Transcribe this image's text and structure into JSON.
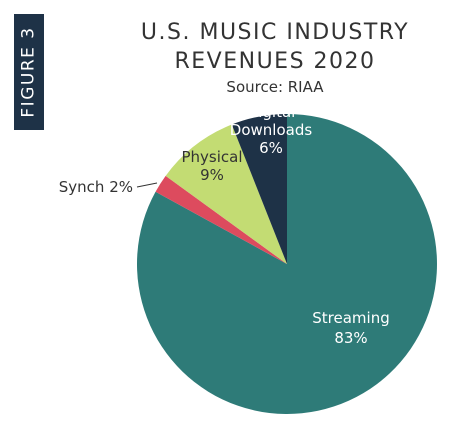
{
  "figure_label": "FIGURE 3",
  "colors": {
    "tab_bg": "#1e3247",
    "text": "#333333"
  },
  "chart_data": {
    "type": "pie",
    "title_line1": "U.S. MUSIC INDUSTRY",
    "title_line2": "REVENUES 2020",
    "subtitle": "Source: RIAA",
    "slices": [
      {
        "name": "Streaming",
        "value": 83,
        "label_lines": [
          "Streaming",
          "83%"
        ],
        "color": "#2e7b78",
        "label_color": "#ffffff"
      },
      {
        "name": "Synch",
        "value": 2,
        "label_lines": [
          "Synch 2%"
        ],
        "color": "#dd4b5e",
        "label_color": "#333333"
      },
      {
        "name": "Physical",
        "value": 9,
        "label_lines": [
          "Physical",
          "9%"
        ],
        "color": "#c3dc73",
        "label_color": "#333333"
      },
      {
        "name": "Digital Downloads",
        "value": 6,
        "label_lines": [
          "Digital",
          "Downloads",
          "6%"
        ],
        "color": "#1e3247",
        "label_color": "#ffffff"
      }
    ],
    "start": "12 o'clock",
    "direction": "clockwise"
  }
}
